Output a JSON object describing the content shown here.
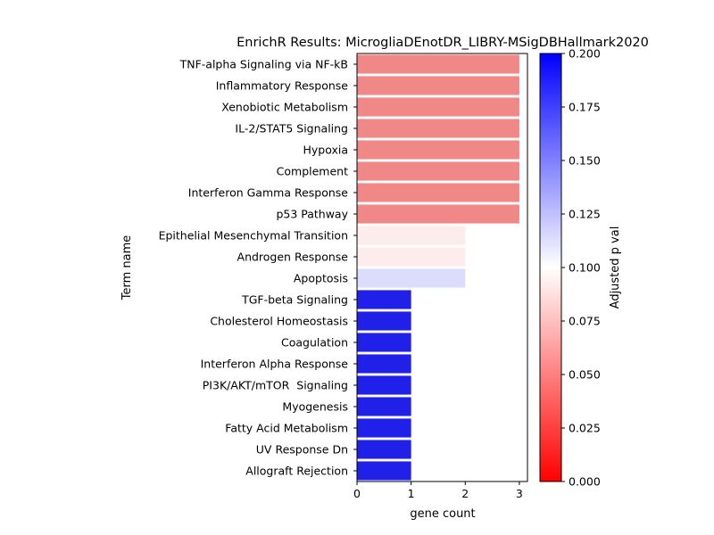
{
  "chart_data": {
    "type": "bar",
    "orientation": "horizontal",
    "title": "EnrichR Results: MicrogliaDEnotDR_LIBRY-MSigDBHallmark2020",
    "xlabel": "gene count",
    "ylabel": "Term name",
    "xlim": [
      0,
      3.15
    ],
    "xticks": [
      0,
      1,
      2,
      3
    ],
    "grid": false,
    "categories": [
      "TNF-alpha Signaling via NF-kB",
      "Inflammatory Response",
      "Xenobiotic Metabolism",
      "IL-2/STAT5 Signaling",
      "Hypoxia",
      "Complement",
      "Interferon Gamma Response",
      "p53 Pathway",
      "Epithelial Mesenchymal Transition",
      "Androgen Response",
      "Apoptosis",
      "TGF-beta Signaling",
      "Cholesterol Homeostasis",
      "Coagulation",
      "Interferon Alpha Response",
      "PI3K/AKT/mTOR  Signaling",
      "Myogenesis",
      "Fatty Acid Metabolism",
      "UV Response Dn",
      "Allograft Rejection"
    ],
    "values": [
      3,
      3,
      3,
      3,
      3,
      3,
      3,
      3,
      2,
      2,
      2,
      1,
      1,
      1,
      1,
      1,
      1,
      1,
      1,
      1
    ],
    "colors": [
      "#f08888",
      "#f08888",
      "#f08888",
      "#f08888",
      "#f08888",
      "#f08888",
      "#f08888",
      "#f08888",
      "#fcecec",
      "#fcecec",
      "#dcdcfc",
      "#2020e8",
      "#2020e8",
      "#2020e8",
      "#2020e8",
      "#2020e8",
      "#2020e8",
      "#2020e8",
      "#2020e8",
      "#2020e8"
    ],
    "colorbar": {
      "label": "Adjusted p val",
      "range": [
        0.0,
        0.2
      ],
      "ticks": [
        "0.000",
        "0.025",
        "0.050",
        "0.075",
        "0.100",
        "0.125",
        "0.150",
        "0.175",
        "0.200"
      ],
      "colormap": "bwr",
      "color_low": "#ff0000",
      "color_mid": "#ffffff",
      "color_high": "#0000ff"
    }
  }
}
